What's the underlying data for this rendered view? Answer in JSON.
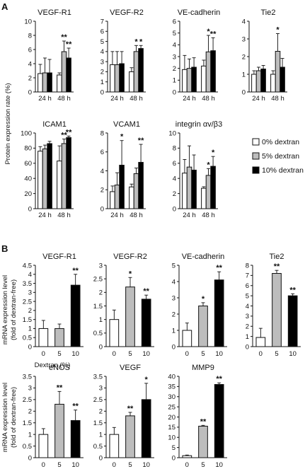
{
  "figure": {
    "panel_a_label": "A",
    "panel_b_label": "B",
    "a_ylabel": "Protein expression rate (%)",
    "b_ylabel_line1": "mRNA expression level",
    "b_ylabel_line2": "(fold of dextran-free)",
    "b_xlabel": "Dextran (%)"
  },
  "legend": [
    {
      "label": "0% dextran",
      "color": "#ffffff"
    },
    {
      "label": "5% dextran",
      "color": "#bdbdbd"
    },
    {
      "label": "10% dextran",
      "color": "#000000"
    }
  ],
  "chart_data": [
    {
      "panel": "A",
      "type": "bar",
      "title": "VEGF-R1",
      "categories": [
        "24 h",
        "48 h"
      ],
      "ylim": [
        0,
        10
      ],
      "yticks": [
        0,
        2,
        4,
        6,
        8,
        10
      ],
      "series": [
        {
          "name": "0% dextran",
          "values": [
            2.6,
            2.4
          ],
          "err": [
            1.3,
            0.3
          ],
          "sig": [
            "",
            ""
          ]
        },
        {
          "name": "5% dextran",
          "values": [
            2.7,
            5.7
          ],
          "err": [
            2.1,
            1.5
          ],
          "sig": [
            "",
            "**"
          ]
        },
        {
          "name": "10% dextran",
          "values": [
            2.7,
            4.8
          ],
          "err": [
            1.9,
            1.4
          ],
          "sig": [
            "",
            "**"
          ]
        }
      ]
    },
    {
      "panel": "A",
      "type": "bar",
      "title": "VEGF-R2",
      "categories": [
        "24 h",
        "48 h"
      ],
      "ylim": [
        0,
        7
      ],
      "yticks": [
        0,
        1,
        2,
        3,
        4,
        5,
        6,
        7
      ],
      "series": [
        {
          "name": "0% dextran",
          "values": [
            2.7,
            2.0
          ],
          "err": [
            1.3,
            0.4
          ],
          "sig": [
            "",
            ""
          ]
        },
        {
          "name": "5% dextran",
          "values": [
            2.7,
            4.0
          ],
          "err": [
            1.3,
            0.6
          ],
          "sig": [
            "",
            "*"
          ]
        },
        {
          "name": "10% dextran",
          "values": [
            2.8,
            4.3
          ],
          "err": [
            1.2,
            0.3
          ],
          "sig": [
            "",
            "*"
          ]
        }
      ]
    },
    {
      "panel": "A",
      "type": "bar",
      "title": "VE-cadherin",
      "categories": [
        "24 h",
        "48 h"
      ],
      "ylim": [
        0,
        6
      ],
      "yticks": [
        0,
        1,
        2,
        3,
        4,
        5,
        6
      ],
      "series": [
        {
          "name": "0% dextran",
          "values": [
            1.9,
            2.2
          ],
          "err": [
            1.2,
            0.5
          ],
          "sig": [
            "",
            ""
          ]
        },
        {
          "name": "5% dextran",
          "values": [
            2.0,
            3.4
          ],
          "err": [
            0.8,
            1.4
          ],
          "sig": [
            "",
            "*"
          ]
        },
        {
          "name": "10% dextran",
          "values": [
            2.1,
            3.5
          ],
          "err": [
            0.8,
            1.1
          ],
          "sig": [
            "",
            "**"
          ]
        }
      ]
    },
    {
      "panel": "A",
      "type": "bar",
      "title": "Tie2",
      "categories": [
        "24 h",
        "48 h"
      ],
      "ylim": [
        0,
        4
      ],
      "yticks": [
        0,
        1,
        2,
        3,
        4
      ],
      "series": [
        {
          "name": "0% dextran",
          "values": [
            1.0,
            1.0
          ],
          "err": [
            0.2,
            0.2
          ],
          "sig": [
            "",
            ""
          ]
        },
        {
          "name": "5% dextran",
          "values": [
            1.2,
            2.3
          ],
          "err": [
            0.2,
            1.0
          ],
          "sig": [
            "",
            "*"
          ]
        },
        {
          "name": "10% dextran",
          "values": [
            1.3,
            1.4
          ],
          "err": [
            0.2,
            0.5
          ],
          "sig": [
            "",
            ""
          ]
        }
      ]
    },
    {
      "panel": "A",
      "type": "bar",
      "title": "ICAM1",
      "categories": [
        "24 h",
        "48 h"
      ],
      "ylim": [
        0,
        100
      ],
      "yticks": [
        0,
        20,
        40,
        60,
        80,
        100
      ],
      "series": [
        {
          "name": "0% dextran",
          "values": [
            76,
            63
          ],
          "err": [
            6,
            20
          ],
          "sig": [
            "",
            ""
          ]
        },
        {
          "name": "5% dextran",
          "values": [
            79,
            86
          ],
          "err": [
            5,
            6
          ],
          "sig": [
            "",
            "**"
          ]
        },
        {
          "name": "10% dextran",
          "values": [
            86,
            94
          ],
          "err": [
            3,
            2
          ],
          "sig": [
            "",
            "**"
          ]
        }
      ]
    },
    {
      "panel": "A",
      "type": "bar",
      "title": "VCAM1",
      "categories": [
        "24 h",
        "48 h"
      ],
      "ylim": [
        0,
        8
      ],
      "yticks": [
        0,
        2,
        4,
        6,
        8
      ],
      "series": [
        {
          "name": "0% dextran",
          "values": [
            1.8,
            2.3
          ],
          "err": [
            0.6,
            0.3
          ],
          "sig": [
            "",
            ""
          ]
        },
        {
          "name": "5% dextran",
          "values": [
            2.5,
            3.7
          ],
          "err": [
            1.3,
            0.6
          ],
          "sig": [
            "",
            ""
          ]
        },
        {
          "name": "10% dextran",
          "values": [
            4.6,
            4.9
          ],
          "err": [
            2.6,
            1.9
          ],
          "sig": [
            "*",
            "**"
          ]
        }
      ]
    },
    {
      "panel": "A",
      "type": "bar",
      "title": "integrin αv/β3",
      "categories": [
        "24 h",
        "48 h"
      ],
      "ylim": [
        0,
        10
      ],
      "yticks": [
        0,
        2,
        4,
        6,
        8,
        10
      ],
      "series": [
        {
          "name": "0% dextran",
          "values": [
            4.7,
            2.7
          ],
          "err": [
            1.8,
            0.2
          ],
          "sig": [
            "",
            ""
          ]
        },
        {
          "name": "5% dextran",
          "values": [
            5.5,
            4.4
          ],
          "err": [
            2.8,
            0.9
          ],
          "sig": [
            "",
            "*"
          ]
        },
        {
          "name": "10% dextran",
          "values": [
            5.1,
            5.6
          ],
          "err": [
            2.0,
            1.3
          ],
          "sig": [
            "",
            "*"
          ]
        }
      ]
    },
    {
      "panel": "B",
      "type": "bar",
      "title": "VEGF-R1",
      "categories": [
        "0",
        "5",
        "10"
      ],
      "ylim": [
        0,
        4.5
      ],
      "yticks": [
        0,
        0.5,
        1,
        1.5,
        2,
        2.5,
        3,
        3.5,
        4,
        4.5
      ],
      "values": [
        1.0,
        1.0,
        3.4
      ],
      "err": [
        0.45,
        0.25,
        0.6
      ],
      "sig": [
        "",
        "",
        "**"
      ]
    },
    {
      "panel": "B",
      "type": "bar",
      "title": "VEGF-R2",
      "categories": [
        "0",
        "5",
        "10"
      ],
      "ylim": [
        0,
        3
      ],
      "yticks": [
        0,
        0.5,
        1,
        1.5,
        2,
        2.5,
        3
      ],
      "values": [
        1.0,
        2.2,
        1.75
      ],
      "err": [
        0.35,
        0.35,
        0.15
      ],
      "sig": [
        "",
        "*",
        "**"
      ]
    },
    {
      "panel": "B",
      "type": "bar",
      "title": "VE-cadherin",
      "categories": [
        "0",
        "5",
        "10"
      ],
      "ylim": [
        0,
        5
      ],
      "yticks": [
        0,
        1,
        2,
        3,
        4,
        5
      ],
      "values": [
        1.0,
        2.5,
        4.1
      ],
      "err": [
        0.45,
        0.2,
        0.5
      ],
      "sig": [
        "",
        "*",
        "**"
      ]
    },
    {
      "panel": "B",
      "type": "bar",
      "title": "Tie2",
      "categories": [
        "0",
        "5",
        "10"
      ],
      "ylim": [
        0,
        8
      ],
      "yticks": [
        0,
        1,
        2,
        3,
        4,
        5,
        6,
        7,
        8
      ],
      "values": [
        0.9,
        7.2,
        5.0
      ],
      "err": [
        0.9,
        0.3,
        0.2
      ],
      "sig": [
        "",
        "**",
        "**"
      ]
    },
    {
      "panel": "B",
      "type": "bar",
      "title": "eNOS",
      "categories": [
        "0",
        "5",
        "10"
      ],
      "ylim": [
        0,
        3.5
      ],
      "yticks": [
        0,
        0.5,
        1,
        1.5,
        2,
        2.5,
        3,
        3.5
      ],
      "values": [
        1.0,
        2.3,
        1.6
      ],
      "err": [
        0.25,
        0.55,
        0.45
      ],
      "sig": [
        "",
        "**",
        "**"
      ]
    },
    {
      "panel": "B",
      "type": "bar",
      "title": "VEGF",
      "categories": [
        "0",
        "5",
        "10"
      ],
      "ylim": [
        0,
        3.5
      ],
      "yticks": [
        0,
        0.5,
        1,
        1.5,
        2,
        2.5,
        3,
        3.5
      ],
      "values": [
        1.0,
        1.8,
        2.5
      ],
      "err": [
        0.3,
        0.15,
        0.7
      ],
      "sig": [
        "",
        "**",
        "*"
      ]
    },
    {
      "panel": "B",
      "type": "bar",
      "title": "MMP9",
      "categories": [
        "0",
        "5",
        "10"
      ],
      "ylim": [
        0,
        40
      ],
      "yticks": [
        0,
        5,
        10,
        15,
        20,
        25,
        30,
        35,
        40
      ],
      "values": [
        1.0,
        15.5,
        36.0
      ],
      "err": [
        0.3,
        0.4,
        0.8
      ],
      "sig": [
        "",
        "**",
        "**"
      ]
    }
  ]
}
